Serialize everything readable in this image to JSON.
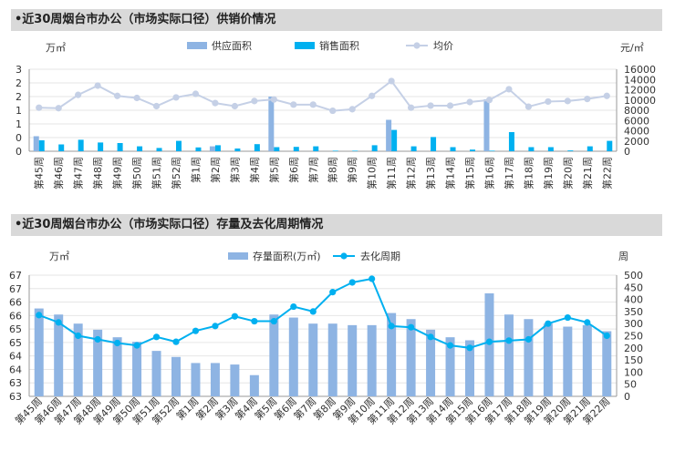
{
  "colors": {
    "supply": "#8eb4e3",
    "sales": "#00b0f0",
    "price_line": "#c5d0e6",
    "stock": "#8eb4e3",
    "cycle": "#00b0f0",
    "grid": "#e6e6e6",
    "section_bg": "#d9d9d9"
  },
  "chart_data": [
    {
      "type": "bar",
      "title": "•近30周烟台市办公（市场实际口径）供销价情况",
      "ylabel_left": "万㎡",
      "ylabel_right": "元/㎡",
      "left_ticks": [
        "3",
        "2",
        "2",
        "1",
        "1",
        "0",
        "0"
      ],
      "ylim_left": [
        0,
        3
      ],
      "ylim_right": [
        0,
        16000
      ],
      "right_ticks": [
        "16000",
        "14000",
        "12000",
        "10000",
        "8000",
        "6000",
        "4000",
        "2000",
        "0"
      ],
      "categories": [
        "第45周",
        "第46周",
        "第47周",
        "第48周",
        "第49周",
        "第50周",
        "第51周",
        "第52周",
        "第1周",
        "第2周",
        "第3周",
        "第4周",
        "第5周",
        "第6周",
        "第7周",
        "第8周",
        "第9周",
        "第10周",
        "第11周",
        "第12周",
        "第13周",
        "第14周",
        "第15周",
        "第16周",
        "第17周",
        "第18周",
        "第19周",
        "第20周",
        "第21周",
        "第22周"
      ],
      "series": [
        {
          "name": "供应面积",
          "kind": "bar",
          "axis": "left",
          "values": [
            0.55,
            0,
            0,
            0,
            0,
            0,
            0,
            0,
            0,
            0.18,
            0,
            0,
            2.0,
            0,
            0,
            0,
            0,
            0,
            1.15,
            0,
            0,
            0,
            0,
            1.9,
            0,
            0,
            0,
            0,
            0,
            0
          ]
        },
        {
          "name": "销售面积",
          "kind": "bar",
          "axis": "left",
          "values": [
            0.4,
            0.25,
            0.42,
            0.32,
            0.3,
            0.18,
            0.12,
            0.38,
            0.14,
            0.22,
            0.1,
            0.26,
            0.15,
            0.16,
            0.18,
            0.02,
            0.02,
            0.22,
            0.78,
            0.18,
            0.52,
            0.15,
            0.06,
            0.02,
            0.7,
            0.15,
            0.15,
            0.03,
            0.18,
            0.38
          ]
        },
        {
          "name": "均价",
          "kind": "line",
          "axis": "right",
          "values": [
            8500,
            8400,
            11000,
            12800,
            10800,
            10400,
            8800,
            10500,
            11200,
            9400,
            8800,
            9800,
            10100,
            9100,
            9100,
            7900,
            8200,
            10800,
            13700,
            8500,
            8900,
            8900,
            9600,
            10000,
            12100,
            8700,
            9700,
            9800,
            10200,
            10800
          ]
        }
      ]
    },
    {
      "type": "bar",
      "title": "•近30周烟台市办公（市场实际口径）存量及去化周期情况",
      "ylabel_left": "万㎡",
      "ylabel_right": "周",
      "ylim_left": [
        63,
        67
      ],
      "ylim_right": [
        0,
        500
      ],
      "left_ticks": [
        "67",
        "67",
        "66",
        "66",
        "65",
        "65",
        "64",
        "64",
        "63",
        "63"
      ],
      "right_ticks": [
        "500",
        "450",
        "400",
        "350",
        "300",
        "250",
        "200",
        "150",
        "100",
        "50",
        "0"
      ],
      "categories": [
        "第45周",
        "第46周",
        "第47周",
        "第48周",
        "第49周",
        "第50周",
        "第51周",
        "第52周",
        "第1周",
        "第2周",
        "第3周",
        "第4周",
        "第5周",
        "第6周",
        "第7周",
        "第8周",
        "第9周",
        "第10周",
        "第11周",
        "第12周",
        "第13周",
        "第14周",
        "第15周",
        "第16周",
        "第17周",
        "第18周",
        "第19周",
        "第20周",
        "第21周",
        "第22周"
      ],
      "series": [
        {
          "name": "存量面积(万㎡)",
          "kind": "bar",
          "axis": "left",
          "values": [
            65.9,
            65.7,
            65.4,
            65.2,
            64.95,
            64.8,
            64.5,
            64.3,
            64.1,
            64.1,
            64.05,
            63.7,
            65.7,
            65.6,
            65.4,
            65.4,
            65.35,
            65.35,
            65.75,
            65.55,
            65.2,
            64.95,
            64.85,
            66.4,
            65.7,
            65.55,
            65.4,
            65.3,
            65.35,
            65.15
          ]
        },
        {
          "name": "去化周期",
          "kind": "line",
          "axis": "right",
          "values": [
            335,
            305,
            250,
            235,
            220,
            210,
            245,
            225,
            270,
            290,
            330,
            310,
            310,
            370,
            350,
            430,
            470,
            485,
            290,
            285,
            245,
            210,
            200,
            225,
            230,
            235,
            300,
            325,
            305,
            250
          ]
        }
      ]
    }
  ]
}
